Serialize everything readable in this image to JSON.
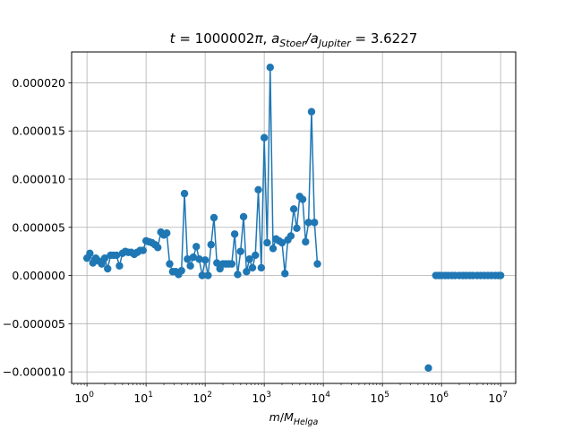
{
  "chart_data": {
    "type": "scatter",
    "title": "t = 1000002π, a_Stoer/a_Jupiter = 3.6227",
    "title_parts": {
      "t_var": "t",
      "t_value": " = 1000002",
      "pi": "π",
      "sep": ", ",
      "a1": "a",
      "a1_sub": "Stoer",
      "slash": "/",
      "a2": "a",
      "a2_sub": "Jupiter",
      "ratio": " = 3.6227"
    },
    "xlabel": "m/M_Helga",
    "xlabel_parts": {
      "m": "m",
      "slash": "/",
      "M": "M",
      "M_sub": "Helga"
    },
    "ylabel": "",
    "x_scale": "log",
    "xlim": [
      0.55,
      18000000
    ],
    "ylim": [
      -1.12e-05,
      2.32e-05
    ],
    "grid": true,
    "marker": "circle",
    "line_color": "#1f77b4",
    "x_ticks": [
      1,
      10,
      100,
      1000,
      10000,
      100000,
      1000000,
      10000000
    ],
    "x_tick_labels": [
      {
        "base": "10",
        "exp": "0"
      },
      {
        "base": "10",
        "exp": "1"
      },
      {
        "base": "10",
        "exp": "2"
      },
      {
        "base": "10",
        "exp": "3"
      },
      {
        "base": "10",
        "exp": "4"
      },
      {
        "base": "10",
        "exp": "5"
      },
      {
        "base": "10",
        "exp": "6"
      },
      {
        "base": "10",
        "exp": "7"
      }
    ],
    "y_ticks": [
      -1e-05,
      -5e-06,
      0.0,
      5e-06,
      1e-05,
      1.5e-05,
      2e-05
    ],
    "y_tick_labels": [
      "−0.000010",
      "−0.000005",
      "0.000000",
      "0.000005",
      "0.000010",
      "0.000015",
      "0.000020"
    ],
    "series": [
      {
        "segments": [
          [
            [
              1.0,
              1.8e-06
            ],
            [
              1.12,
              2.3e-06
            ],
            [
              1.26,
              1.3e-06
            ],
            [
              1.41,
              1.8e-06
            ],
            [
              1.58,
              1.5e-06
            ],
            [
              1.78,
              1.2e-06
            ],
            [
              2.0,
              1.8e-06
            ],
            [
              2.24,
              7e-07
            ],
            [
              2.51,
              2.1e-06
            ],
            [
              2.82,
              2.1e-06
            ],
            [
              3.16,
              2.1e-06
            ],
            [
              3.55,
              1e-06
            ],
            [
              3.98,
              2.3e-06
            ],
            [
              4.47,
              2.5e-06
            ],
            [
              5.01,
              2.4e-06
            ],
            [
              5.62,
              2.4e-06
            ],
            [
              6.31,
              2.2e-06
            ],
            [
              7.08,
              2.4e-06
            ],
            [
              7.94,
              2.6e-06
            ],
            [
              8.91,
              2.6e-06
            ],
            [
              10.0,
              3.6e-06
            ],
            [
              11.2,
              3.5e-06
            ],
            [
              12.6,
              3.4e-06
            ],
            [
              14.1,
              3.2e-06
            ],
            [
              15.8,
              2.9e-06
            ],
            [
              17.8,
              4.5e-06
            ],
            [
              20.0,
              4.2e-06
            ],
            [
              22.4,
              4.4e-06
            ],
            [
              25.1,
              1.2e-06
            ],
            [
              28.2,
              4e-07
            ],
            [
              31.6,
              4e-07
            ],
            [
              35.5,
              1e-07
            ],
            [
              39.8,
              5e-07
            ],
            [
              44.7,
              8.5e-06
            ],
            [
              50.1,
              1.7e-06
            ],
            [
              56.2,
              1e-06
            ],
            [
              63.1,
              1.9e-06
            ],
            [
              70.8,
              3e-06
            ],
            [
              79.4,
              1.7e-06
            ],
            [
              89.1,
              0.0
            ],
            [
              100.0,
              1.6e-06
            ],
            [
              112,
              0.0
            ],
            [
              126,
              3.2e-06
            ],
            [
              141,
              6e-06
            ],
            [
              158,
              1.3e-06
            ],
            [
              178,
              7e-07
            ],
            [
              200,
              1.2e-06
            ],
            [
              224,
              1.2e-06
            ],
            [
              251,
              1.2e-06
            ],
            [
              282,
              1.2e-06
            ],
            [
              316,
              4.3e-06
            ],
            [
              355,
              1e-07
            ],
            [
              398,
              2.5e-06
            ],
            [
              447,
              6.1e-06
            ],
            [
              501,
              4e-07
            ],
            [
              562,
              1.7e-06
            ],
            [
              631,
              8e-07
            ],
            [
              708,
              2.1e-06
            ],
            [
              794,
              8.9e-06
            ],
            [
              891,
              8e-07
            ],
            [
              1000,
              1.43e-05
            ],
            [
              1120,
              3.4e-06
            ],
            [
              1260,
              2.16e-05
            ],
            [
              1410,
              2.8e-06
            ],
            [
              1580,
              3.8e-06
            ],
            [
              1780,
              3.6e-06
            ],
            [
              2000,
              3.4e-06
            ],
            [
              2240,
              2e-07
            ],
            [
              2510,
              3.7e-06
            ],
            [
              2820,
              4.1e-06
            ],
            [
              3160,
              6.9e-06
            ],
            [
              3550,
              4.9e-06
            ],
            [
              3980,
              8.2e-06
            ],
            [
              4470,
              7.9e-06
            ],
            [
              5010,
              3.5e-06
            ],
            [
              5620,
              5.5e-06
            ],
            [
              6310,
              1.7e-05
            ],
            [
              7080,
              5.5e-06
            ],
            [
              7940,
              1.2e-06
            ]
          ],
          [
            [
              600000,
              -9.6e-06
            ]
          ],
          [
            [
              800000,
              0.0
            ],
            [
              900000,
              0.0
            ],
            [
              1000000,
              0.0
            ],
            [
              1150000,
              0.0
            ],
            [
              1300000,
              0.0
            ],
            [
              1500000,
              0.0
            ],
            [
              1700000,
              0.0
            ],
            [
              2000000,
              0.0
            ],
            [
              2300000,
              0.0
            ],
            [
              2600000,
              0.0
            ],
            [
              3000000,
              0.0
            ],
            [
              3400000,
              0.0
            ],
            [
              4000000,
              0.0
            ],
            [
              4600000,
              0.0
            ],
            [
              5300000,
              0.0
            ],
            [
              6100000,
              0.0
            ],
            [
              7000000,
              0.0
            ],
            [
              8100000,
              0.0
            ],
            [
              9200000,
              0.0
            ],
            [
              10000000,
              0.0
            ]
          ]
        ]
      }
    ]
  }
}
